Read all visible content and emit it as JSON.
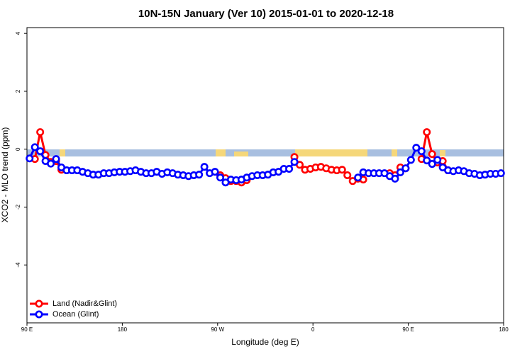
{
  "chart_data": {
    "type": "line",
    "title": "10N-15N January (Ver 10)   2015-01-01 to 2020-12-18",
    "xlabel": "Longitude (deg E)",
    "ylabel": "XCO2 - MLO trend (ppm)",
    "x": [
      92.5,
      97.5,
      102.5,
      107.5,
      112.5,
      117.5,
      122.5,
      127.5,
      132.5,
      137.5,
      142.5,
      147.5,
      152.5,
      157.5,
      162.5,
      167.5,
      172.5,
      177.5,
      182.5,
      187.5,
      192.5,
      197.5,
      202.5,
      207.5,
      212.5,
      217.5,
      222.5,
      227.5,
      232.5,
      237.5,
      242.5,
      247.5,
      252.5,
      257.5,
      262.5,
      267.5,
      272.5,
      277.5,
      282.5,
      287.5,
      292.5,
      297.5,
      302.5,
      307.5,
      312.5,
      317.5,
      322.5,
      327.5,
      332.5,
      337.5,
      342.5,
      347.5,
      352.5,
      357.5,
      362.5,
      367.5,
      372.5,
      377.5,
      382.5,
      387.5,
      392.5,
      397.5,
      402.5,
      407.5,
      412.5,
      417.5,
      422.5,
      427.5,
      432.5,
      437.5,
      442.5,
      447.5,
      452.5,
      457.5,
      462.5,
      467.5,
      472.5,
      477.5,
      482.5,
      487.5,
      492.5,
      497.5,
      502.5,
      507.5,
      512.5,
      517.5,
      522.5,
      527.5,
      532.5,
      537.5
    ],
    "series": [
      {
        "name": "Land (Nadir&Glint)",
        "color": "#ff0000",
        "values": [
          null,
          -0.34,
          0.59,
          -0.2,
          -0.44,
          -0.41,
          -0.71,
          null,
          null,
          null,
          null,
          null,
          null,
          null,
          null,
          null,
          null,
          null,
          null,
          null,
          null,
          null,
          null,
          null,
          null,
          null,
          null,
          null,
          null,
          null,
          null,
          null,
          null,
          null,
          null,
          null,
          -0.9,
          -1.0,
          -1.1,
          -1.1,
          -1.15,
          -1.07,
          null,
          null,
          null,
          null,
          null,
          null,
          null,
          null,
          -0.27,
          -0.54,
          -0.71,
          -0.68,
          -0.63,
          -0.61,
          -0.66,
          -0.71,
          -0.73,
          -0.71,
          -0.9,
          -1.1,
          -1.02,
          -1.05,
          null,
          null,
          null,
          null,
          -0.83,
          -0.9,
          -0.63,
          -0.66,
          null,
          null,
          -0.34,
          0.59,
          -0.17,
          -0.46,
          -0.41,
          -0.73,
          null,
          null,
          null,
          null,
          null,
          null,
          null,
          null,
          null,
          null
        ]
      },
      {
        "name": "Ocean (Glint)",
        "color": "#0000ff",
        "values": [
          -0.32,
          0.07,
          -0.07,
          -0.41,
          -0.5,
          -0.34,
          -0.63,
          -0.73,
          -0.73,
          -0.73,
          -0.78,
          -0.83,
          -0.88,
          -0.88,
          -0.83,
          -0.83,
          -0.8,
          -0.78,
          -0.78,
          -0.76,
          -0.73,
          -0.78,
          -0.83,
          -0.83,
          -0.78,
          -0.85,
          -0.8,
          -0.83,
          -0.88,
          -0.9,
          -0.93,
          -0.9,
          -0.88,
          -0.61,
          -0.83,
          -0.78,
          -0.98,
          -1.15,
          -1.05,
          -1.07,
          -1.05,
          -0.98,
          -0.93,
          -0.9,
          -0.9,
          -0.88,
          -0.8,
          -0.78,
          -0.68,
          -0.68,
          -0.44,
          null,
          null,
          null,
          null,
          null,
          null,
          null,
          null,
          null,
          null,
          null,
          -0.98,
          -0.8,
          -0.83,
          -0.83,
          -0.83,
          -0.83,
          -0.93,
          -1.02,
          -0.8,
          -0.66,
          -0.37,
          0.05,
          -0.07,
          -0.39,
          -0.51,
          -0.37,
          -0.63,
          -0.73,
          -0.76,
          -0.73,
          -0.76,
          -0.83,
          -0.85,
          -0.9,
          -0.88,
          -0.85,
          -0.85,
          -0.83
        ]
      }
    ],
    "xlim": [
      90,
      540
    ],
    "xticks": [
      {
        "value": 90,
        "label": "90 E"
      },
      180,
      {
        "value": 270,
        "label": "90 W"
      },
      {
        "value": 360,
        "label": "0"
      },
      {
        "value": 450,
        "label": "90 E"
      },
      {
        "value": 540,
        "label": "180"
      }
    ],
    "ylim": [
      -6,
      4.2
    ],
    "yticks": [
      4,
      2,
      0,
      -2,
      -4
    ],
    "legend": "bottomleft"
  }
}
